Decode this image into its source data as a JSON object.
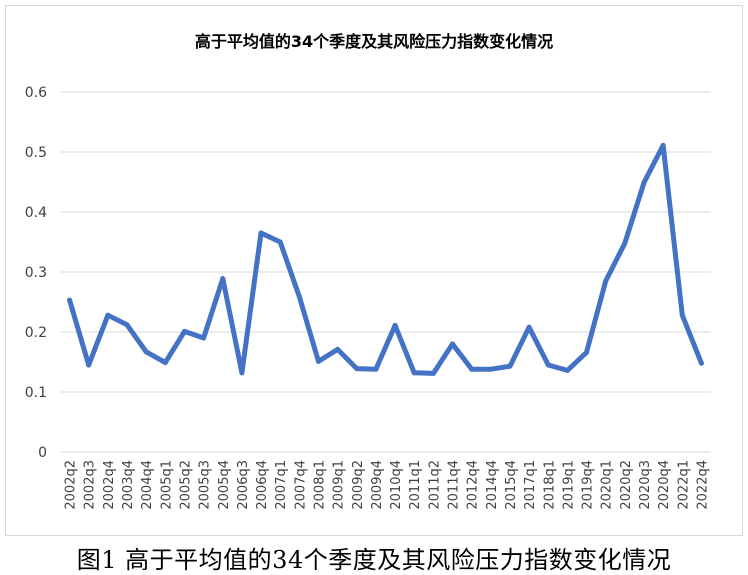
{
  "caption": "图1  高于平均值的34个季度及其风险压力指数变化情况",
  "chart_data": {
    "type": "line",
    "title": "高于平均值的34个季度及其风险压力指数变化情况",
    "xlabel": "",
    "ylabel": "",
    "ylim": [
      0,
      0.6
    ],
    "yticks": [
      "0",
      "0.1",
      "0.2",
      "0.3",
      "0.4",
      "0.5",
      "0.6"
    ],
    "grid": true,
    "legend": "none",
    "colors": {
      "line": "#4472C4",
      "grid": "#d9d9d9",
      "text": "#000000"
    },
    "categories": [
      "2002q2",
      "2002q3",
      "2002q4",
      "2003q4",
      "2004q4",
      "2005q1",
      "2005q2",
      "2005q3",
      "2005q4",
      "2006q3",
      "2006q4",
      "2007q1",
      "2007q4",
      "2008q1",
      "2009q1",
      "2009q2",
      "2009q4",
      "2010q4",
      "2011q1",
      "2011q2",
      "2011q4",
      "2012q4",
      "2014q4",
      "2015q4",
      "2017q1",
      "2018q1",
      "2019q1",
      "2019q4",
      "2020q1",
      "2020q2",
      "2020q3",
      "2020q4",
      "2022q1",
      "2022q4"
    ],
    "values": [
      0.253,
      0.145,
      0.228,
      0.212,
      0.167,
      0.149,
      0.201,
      0.19,
      0.289,
      0.132,
      0.365,
      0.35,
      0.259,
      0.151,
      0.171,
      0.139,
      0.138,
      0.211,
      0.132,
      0.131,
      0.18,
      0.138,
      0.138,
      0.143,
      0.208,
      0.145,
      0.136,
      0.166,
      0.285,
      0.348,
      0.449,
      0.511,
      0.228,
      0.148
    ]
  }
}
